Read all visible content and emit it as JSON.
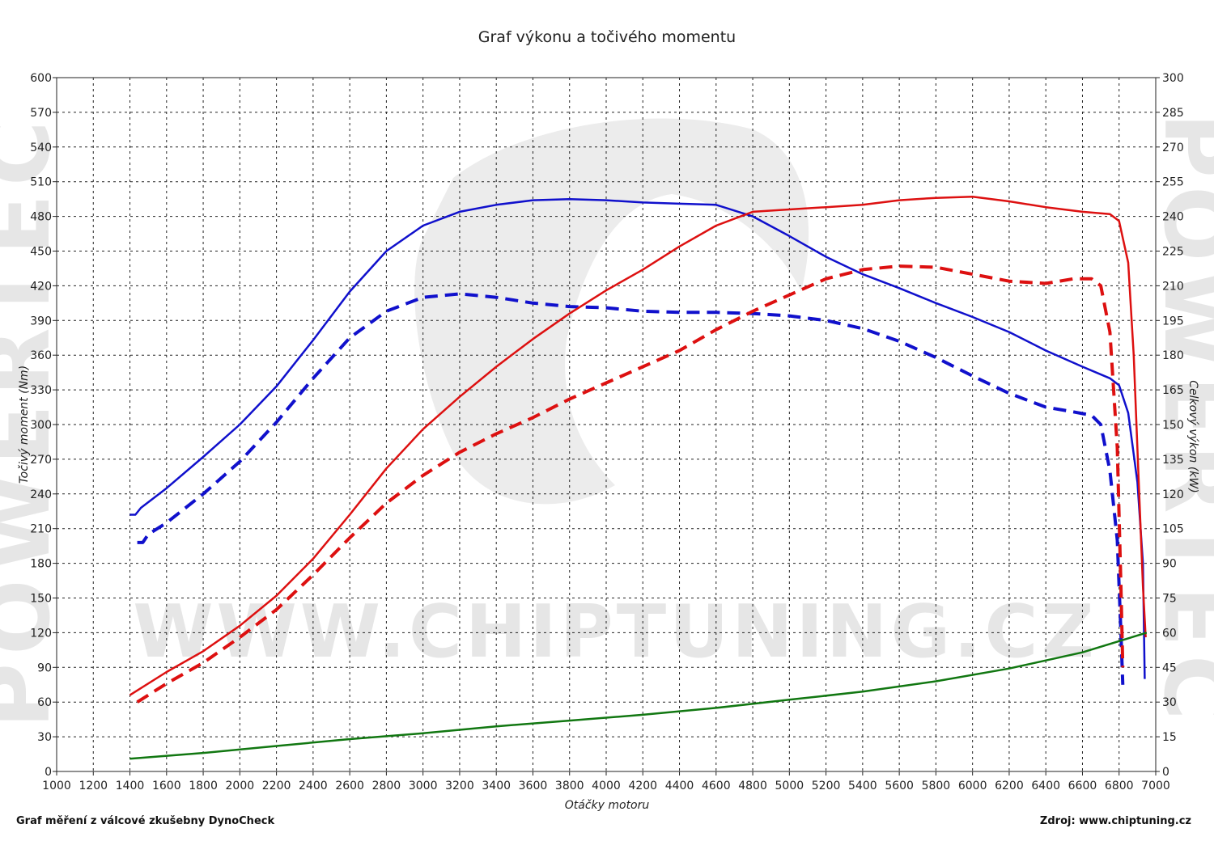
{
  "watermark": {
    "url": "WWW.CHIPTUNING.CZ",
    "side": "POWERTEC"
  },
  "footer": {
    "left": "Graf měření z válcové zkušebny DynoCheck",
    "right": "Zdroj: www.chiptuning.cz"
  },
  "colors": {
    "torque": "#1010cc",
    "power": "#dd1010",
    "loss": "#117711"
  },
  "chart_data": {
    "type": "line",
    "title": "Graf výkonu a točivého momentu",
    "xlabel": "Otáčky motoru",
    "ylabel_left": "Točivý moment (Nm)",
    "ylabel_right": "Celkový výkon (kW)",
    "xlim": [
      1000,
      7000
    ],
    "ylim_left": [
      0,
      600
    ],
    "ylim_right": [
      0,
      300
    ],
    "xticks": [
      "1000",
      "1200",
      "1400",
      "1600",
      "1800",
      "2000",
      "2200",
      "2400",
      "2600",
      "2800",
      "3000",
      "3200",
      "3400",
      "3600",
      "3800",
      "4000",
      "4200",
      "4400",
      "4600",
      "4800",
      "5000",
      "5200",
      "5400",
      "5600",
      "5800",
      "6000",
      "6200",
      "6400",
      "6600",
      "6800",
      "7000"
    ],
    "yticks_left": [
      "0",
      "30",
      "60",
      "90",
      "120",
      "150",
      "180",
      "210",
      "240",
      "270",
      "300",
      "330",
      "360",
      "390",
      "420",
      "450",
      "480",
      "510",
      "540",
      "570",
      "600"
    ],
    "yticks_right": [
      "0",
      "15",
      "30",
      "45",
      "60",
      "75",
      "90",
      "105",
      "120",
      "135",
      "150",
      "165",
      "180",
      "195",
      "210",
      "225",
      "240",
      "255",
      "270",
      "285",
      "300"
    ],
    "grid": true,
    "series": [
      {
        "axis": "left",
        "style": "solid",
        "color": "torque",
        "points": [
          [
            1400,
            222
          ],
          [
            1430,
            222
          ],
          [
            1460,
            228
          ],
          [
            1600,
            245
          ],
          [
            1800,
            272
          ],
          [
            2000,
            300
          ],
          [
            2200,
            333
          ],
          [
            2400,
            373
          ],
          [
            2600,
            415
          ],
          [
            2800,
            450
          ],
          [
            3000,
            472
          ],
          [
            3200,
            484
          ],
          [
            3400,
            490
          ],
          [
            3600,
            494
          ],
          [
            3800,
            495
          ],
          [
            4000,
            494
          ],
          [
            4200,
            492
          ],
          [
            4400,
            491
          ],
          [
            4600,
            490
          ],
          [
            4800,
            480
          ],
          [
            5000,
            463
          ],
          [
            5200,
            445
          ],
          [
            5400,
            430
          ],
          [
            5600,
            418
          ],
          [
            5800,
            405
          ],
          [
            6000,
            393
          ],
          [
            6200,
            380
          ],
          [
            6400,
            364
          ],
          [
            6600,
            350
          ],
          [
            6750,
            340
          ],
          [
            6800,
            334
          ],
          [
            6850,
            310
          ],
          [
            6900,
            250
          ],
          [
            6930,
            180
          ],
          [
            6940,
            80
          ]
        ]
      },
      {
        "axis": "left",
        "style": "dashed",
        "color": "torque",
        "points": [
          [
            1440,
            198
          ],
          [
            1470,
            198
          ],
          [
            1500,
            205
          ],
          [
            1600,
            215
          ],
          [
            1800,
            240
          ],
          [
            2000,
            268
          ],
          [
            2200,
            302
          ],
          [
            2400,
            340
          ],
          [
            2600,
            375
          ],
          [
            2800,
            398
          ],
          [
            3000,
            410
          ],
          [
            3200,
            413
          ],
          [
            3400,
            410
          ],
          [
            3600,
            405
          ],
          [
            3800,
            402
          ],
          [
            4000,
            401
          ],
          [
            4200,
            398
          ],
          [
            4400,
            397
          ],
          [
            4600,
            397
          ],
          [
            4800,
            396
          ],
          [
            5000,
            394
          ],
          [
            5200,
            390
          ],
          [
            5400,
            383
          ],
          [
            5600,
            372
          ],
          [
            5800,
            358
          ],
          [
            6000,
            342
          ],
          [
            6200,
            327
          ],
          [
            6400,
            315
          ],
          [
            6550,
            311
          ],
          [
            6650,
            308
          ],
          [
            6700,
            300
          ],
          [
            6750,
            260
          ],
          [
            6790,
            200
          ],
          [
            6810,
            120
          ],
          [
            6820,
            75
          ]
        ]
      },
      {
        "axis": "right",
        "style": "solid",
        "color": "power",
        "points": [
          [
            1400,
            33
          ],
          [
            1600,
            43
          ],
          [
            1800,
            52
          ],
          [
            2000,
            63
          ],
          [
            2200,
            76
          ],
          [
            2400,
            92
          ],
          [
            2600,
            111
          ],
          [
            2800,
            131
          ],
          [
            3000,
            148
          ],
          [
            3200,
            162
          ],
          [
            3400,
            175
          ],
          [
            3600,
            187
          ],
          [
            3800,
            198
          ],
          [
            4000,
            208
          ],
          [
            4200,
            217
          ],
          [
            4400,
            227
          ],
          [
            4600,
            236
          ],
          [
            4800,
            242
          ],
          [
            5000,
            243
          ],
          [
            5200,
            244
          ],
          [
            5400,
            245
          ],
          [
            5600,
            247
          ],
          [
            5800,
            248
          ],
          [
            6000,
            248.5
          ],
          [
            6200,
            246.5
          ],
          [
            6400,
            244
          ],
          [
            6600,
            242
          ],
          [
            6750,
            241
          ],
          [
            6800,
            238
          ],
          [
            6850,
            220
          ],
          [
            6880,
            180
          ],
          [
            6910,
            120
          ],
          [
            6930,
            80
          ],
          [
            6945,
            58
          ]
        ]
      },
      {
        "axis": "right",
        "style": "dashed",
        "color": "power",
        "points": [
          [
            1440,
            30
          ],
          [
            1600,
            38
          ],
          [
            1800,
            47
          ],
          [
            2000,
            58
          ],
          [
            2200,
            70
          ],
          [
            2400,
            85
          ],
          [
            2600,
            101
          ],
          [
            2800,
            116
          ],
          [
            3000,
            128
          ],
          [
            3200,
            138
          ],
          [
            3400,
            146
          ],
          [
            3600,
            153
          ],
          [
            3800,
            161
          ],
          [
            4000,
            168
          ],
          [
            4200,
            175
          ],
          [
            4400,
            182
          ],
          [
            4600,
            191
          ],
          [
            4800,
            199
          ],
          [
            5000,
            206
          ],
          [
            5200,
            213
          ],
          [
            5400,
            217
          ],
          [
            5600,
            218.5
          ],
          [
            5800,
            218
          ],
          [
            6000,
            215
          ],
          [
            6200,
            212
          ],
          [
            6400,
            211
          ],
          [
            6550,
            213
          ],
          [
            6650,
            213
          ],
          [
            6700,
            210
          ],
          [
            6750,
            190
          ],
          [
            6790,
            140
          ],
          [
            6810,
            80
          ],
          [
            6820,
            45
          ]
        ]
      },
      {
        "axis": "left",
        "style": "solid",
        "color": "loss",
        "points": [
          [
            1400,
            11
          ],
          [
            1800,
            16
          ],
          [
            2200,
            22
          ],
          [
            2600,
            28
          ],
          [
            3000,
            33
          ],
          [
            3400,
            39
          ],
          [
            3800,
            44
          ],
          [
            4200,
            49
          ],
          [
            4600,
            55
          ],
          [
            5000,
            62
          ],
          [
            5400,
            69
          ],
          [
            5800,
            78
          ],
          [
            6200,
            89
          ],
          [
            6600,
            103
          ],
          [
            6950,
            120
          ]
        ]
      }
    ]
  }
}
